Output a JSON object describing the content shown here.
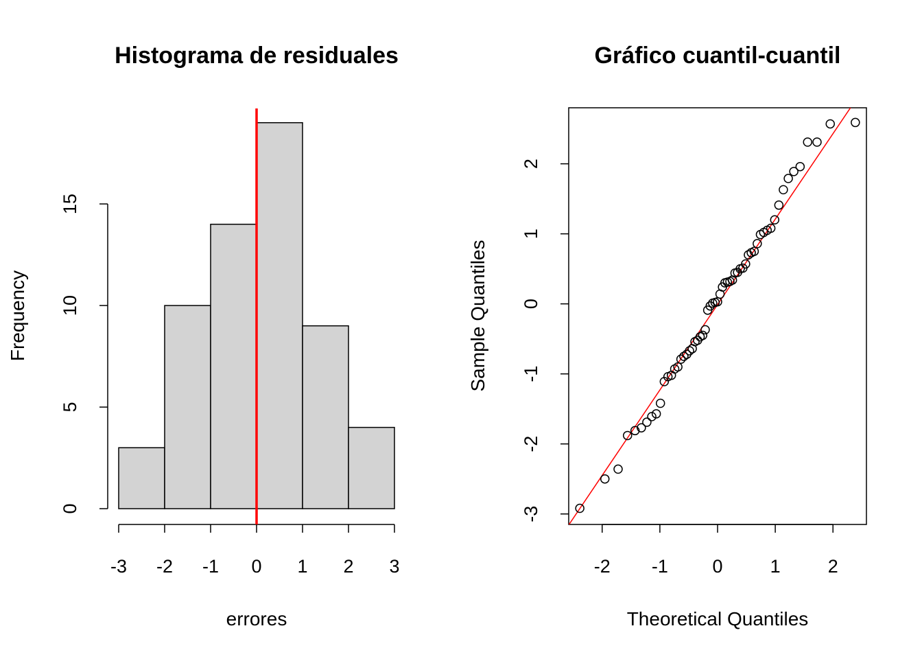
{
  "chart_data": [
    {
      "type": "bar",
      "title": "Histograma de residuales",
      "xlabel": "errores",
      "ylabel": "Frequency",
      "bin_edges": [
        -3,
        -2,
        -1,
        0,
        1,
        2,
        3
      ],
      "values": [
        3,
        10,
        14,
        19,
        9,
        4
      ],
      "xticks": [
        "-3",
        "-2",
        "-1",
        "0",
        "1",
        "2",
        "3"
      ],
      "yticks": [
        "0",
        "5",
        "10",
        "15"
      ],
      "xlim": [
        -3,
        3
      ],
      "ylim": [
        0,
        19.7
      ],
      "bar_color": "#d3d3d3",
      "vline": {
        "x": 0,
        "color": "#ff0000"
      }
    },
    {
      "type": "scatter",
      "title": "Gráfico cuantil-cuantil",
      "xlabel": "Theoretical Quantiles",
      "ylabel": "Sample Quantiles",
      "xticks": [
        "-2",
        "-1",
        "0",
        "1",
        "2"
      ],
      "yticks": [
        "-3",
        "-2",
        "-1",
        "0",
        "1",
        "2"
      ],
      "xlim": [
        -2.58,
        2.58
      ],
      "ylim": [
        -3.15,
        2.8
      ],
      "sample_sorted": [
        -2.92,
        -2.5,
        -2.36,
        -1.88,
        -1.81,
        -1.77,
        -1.69,
        -1.61,
        -1.57,
        -1.42,
        -1.11,
        -1.04,
        -1.02,
        -0.93,
        -0.9,
        -0.79,
        -0.75,
        -0.72,
        -0.67,
        -0.64,
        -0.54,
        -0.52,
        -0.47,
        -0.45,
        -0.37,
        -0.09,
        -0.03,
        0.01,
        0.02,
        0.03,
        0.14,
        0.24,
        0.3,
        0.31,
        0.32,
        0.34,
        0.44,
        0.45,
        0.5,
        0.51,
        0.57,
        0.7,
        0.73,
        0.75,
        0.86,
        0.99,
        1.02,
        1.05,
        1.08,
        1.2,
        1.41,
        1.63,
        1.79,
        1.89,
        1.96,
        2.31,
        2.31,
        2.57,
        2.59
      ],
      "qqline": {
        "intercept": -0.01,
        "slope": 1.22,
        "color": "#ff0000"
      }
    }
  ]
}
